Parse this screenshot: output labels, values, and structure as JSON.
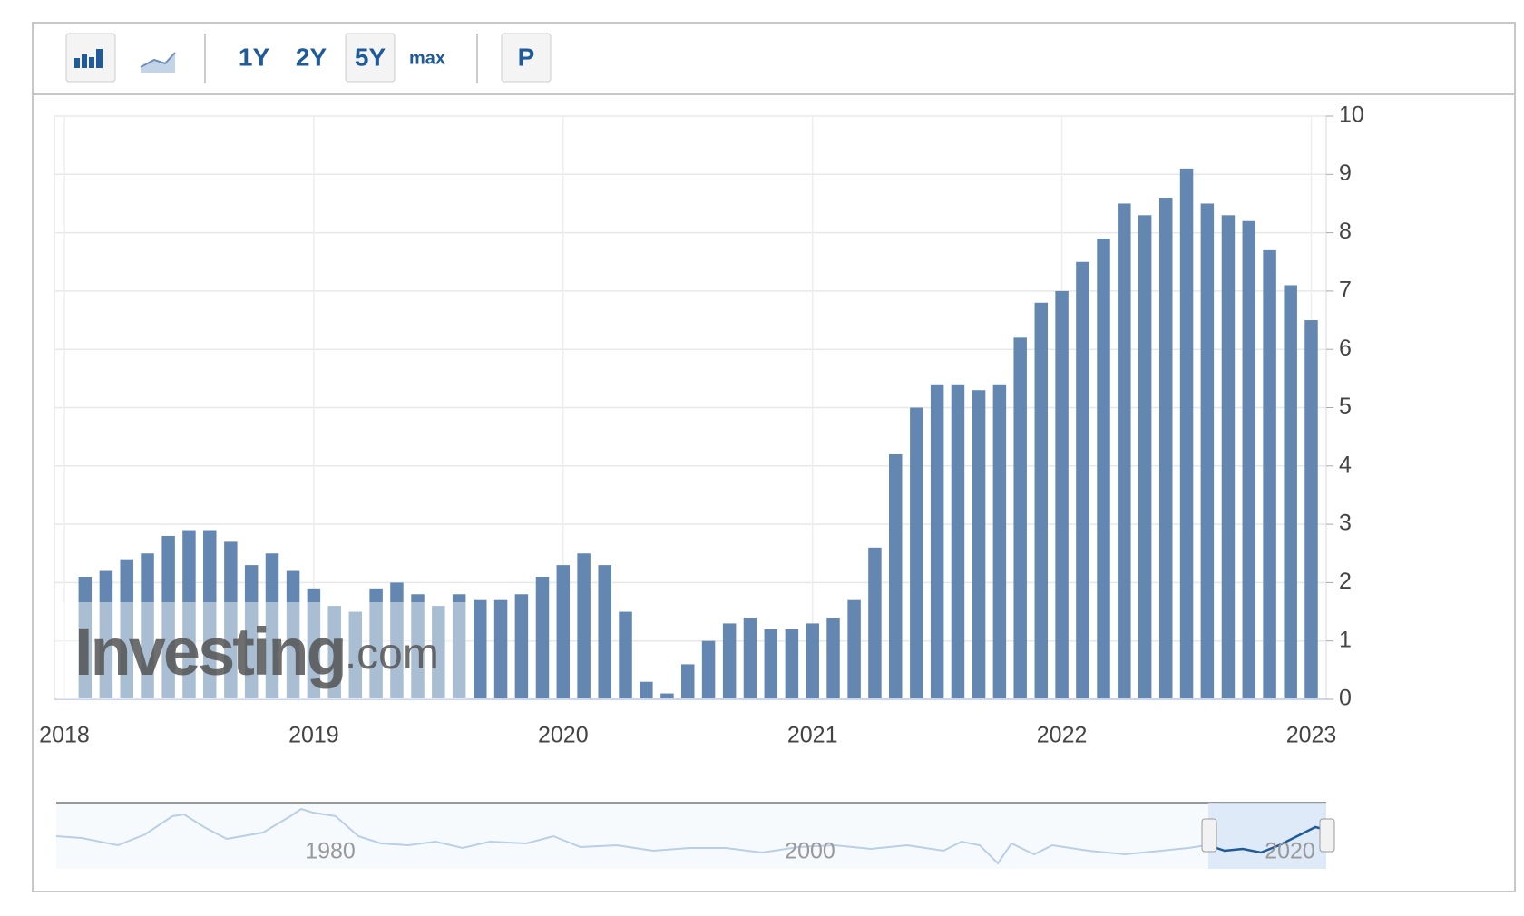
{
  "toolbar": {
    "buttons": [
      "1Y",
      "2Y",
      "5Y",
      "max",
      "P"
    ]
  },
  "chart_data": {
    "type": "bar",
    "color": "#6387b0",
    "grid": true,
    "x": [
      2018.083,
      2018.167,
      2018.25,
      2018.333,
      2018.417,
      2018.5,
      2018.583,
      2018.667,
      2018.75,
      2018.833,
      2018.917,
      2019.0,
      2019.083,
      2019.167,
      2019.25,
      2019.333,
      2019.417,
      2019.5,
      2019.583,
      2019.667,
      2019.75,
      2019.833,
      2019.917,
      2020.0,
      2020.083,
      2020.167,
      2020.25,
      2020.333,
      2020.417,
      2020.5,
      2020.583,
      2020.667,
      2020.75,
      2020.833,
      2020.917,
      2021.0,
      2021.083,
      2021.167,
      2021.25,
      2021.333,
      2021.417,
      2021.5,
      2021.583,
      2021.667,
      2021.75,
      2021.833,
      2021.917,
      2022.0,
      2022.083,
      2022.167,
      2022.25,
      2022.333,
      2022.417,
      2022.5,
      2022.583,
      2022.667,
      2022.75,
      2022.833,
      2022.917,
      2023.0
    ],
    "values": [
      2.1,
      2.2,
      2.4,
      2.5,
      2.8,
      2.9,
      2.9,
      2.7,
      2.3,
      2.5,
      2.2,
      1.9,
      1.6,
      1.5,
      1.9,
      2.0,
      1.8,
      1.6,
      1.8,
      1.7,
      1.7,
      1.8,
      2.1,
      2.3,
      2.5,
      2.3,
      1.5,
      0.3,
      0.1,
      0.6,
      1.0,
      1.3,
      1.4,
      1.2,
      1.2,
      1.3,
      1.4,
      1.7,
      2.6,
      4.2,
      5.0,
      5.4,
      5.4,
      5.3,
      5.4,
      6.2,
      6.8,
      7.0,
      7.5,
      7.9,
      8.5,
      8.3,
      8.6,
      9.1,
      8.5,
      8.3,
      8.2,
      7.7,
      7.1,
      6.5
    ],
    "xlim": [
      2017.96,
      2023.06
    ],
    "xticks": [
      2018,
      2019,
      2020,
      2021,
      2022,
      2023
    ],
    "ylim": [
      0,
      10
    ],
    "yticks": [
      0,
      1,
      2,
      3,
      4,
      5,
      6,
      7,
      8,
      9,
      10
    ]
  },
  "watermark": {
    "brand": "Investing",
    "suffix": ".com"
  },
  "navigator": {
    "labels": [
      "1980",
      "2000",
      "2020"
    ]
  }
}
